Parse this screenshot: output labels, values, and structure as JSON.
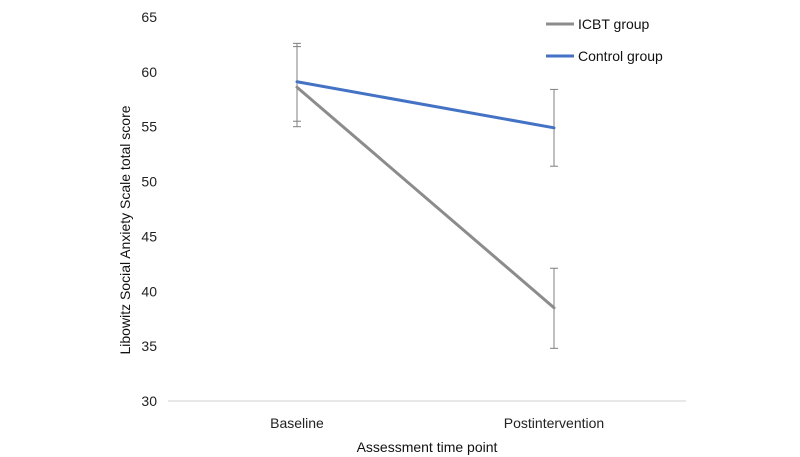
{
  "chart_data": {
    "type": "line",
    "title": "",
    "xlabel": "Assessment time point",
    "ylabel": "Libowitz Social Anxiety Scale total score",
    "categories": [
      "Baseline",
      "Postintervention"
    ],
    "ylim": [
      30,
      65
    ],
    "yticks": [
      30,
      35,
      40,
      45,
      50,
      55,
      60,
      65
    ],
    "grid": false,
    "legend_position": "top-right",
    "series": [
      {
        "name": "ICBT group",
        "color": "#8c8c8c",
        "values": [
          58.6,
          38.5
        ],
        "error_low": [
          55.5,
          34.8
        ],
        "error_high": [
          62.3,
          42.1
        ]
      },
      {
        "name": "Control group",
        "color": "#4472c4",
        "values": [
          59.1,
          54.9
        ],
        "error_low": [
          55.0,
          51.4
        ],
        "error_high": [
          62.6,
          58.4
        ]
      }
    ]
  }
}
